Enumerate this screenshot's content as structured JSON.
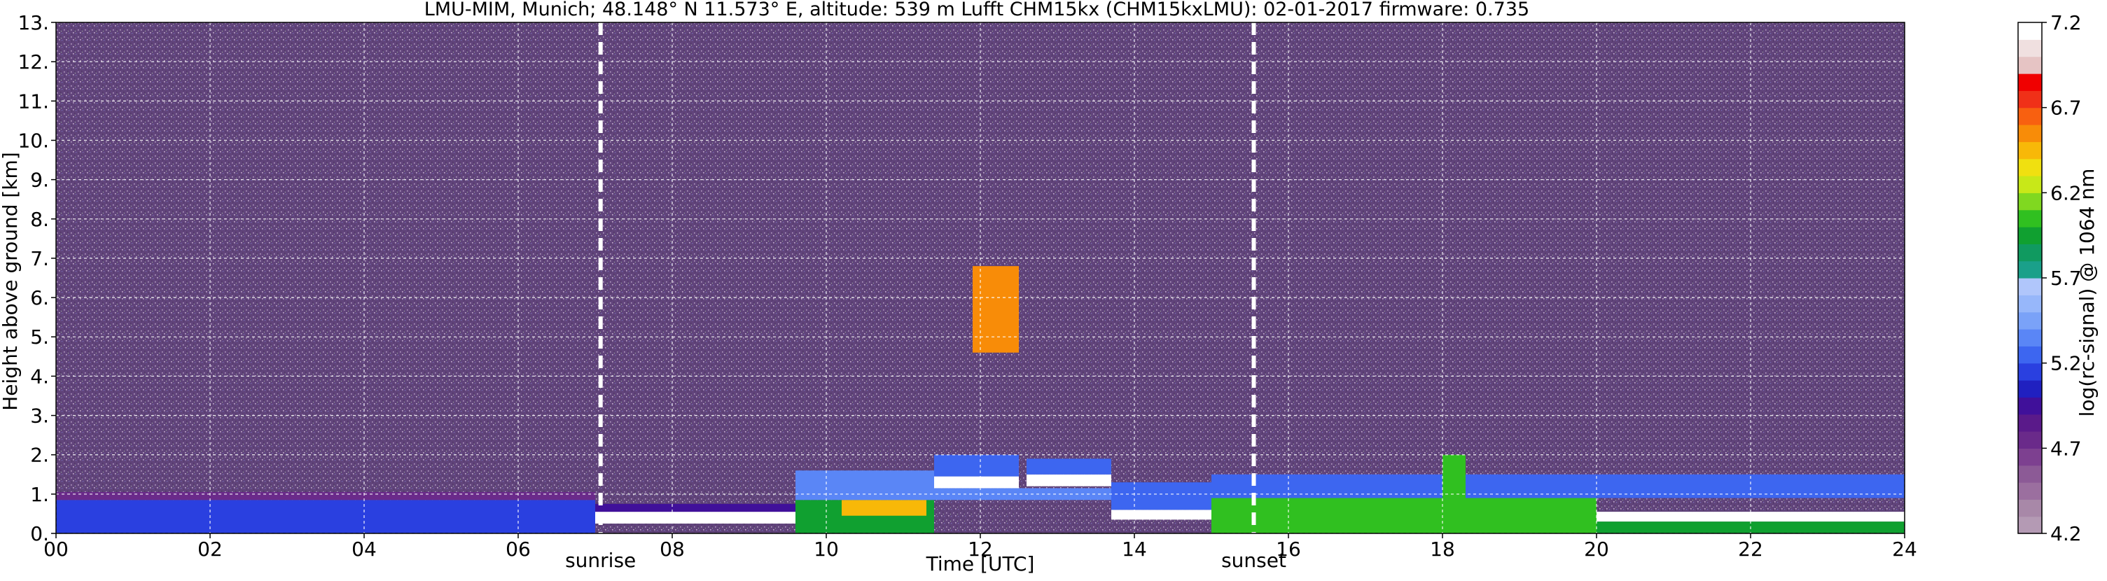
{
  "chart_data": {
    "type": "heatmap",
    "title": "LMU-MIM, Munich; 48.148° N 11.573° E, altitude: 539 m    Lufft CHM15kx (CHM15kxLMU): 02-01-2017    firmware: 0.735",
    "xlabel": "Time [UTC]",
    "ylabel": "Height above ground [km]",
    "xlim": [
      0,
      24
    ],
    "ylim": [
      0,
      13
    ],
    "xticks": [
      "00",
      "02",
      "04",
      "06",
      "08",
      "10",
      "12",
      "14",
      "16",
      "18",
      "20",
      "22",
      "24"
    ],
    "xtick_values": [
      0,
      2,
      4,
      6,
      8,
      10,
      12,
      14,
      16,
      18,
      20,
      22,
      24
    ],
    "yticks": [
      "0.",
      "1.",
      "2.",
      "3.",
      "4.",
      "5.",
      "6.",
      "7.",
      "8.",
      "9.",
      "10.",
      "11.",
      "12.",
      "13."
    ],
    "ytick_values": [
      0,
      1,
      2,
      3,
      4,
      5,
      6,
      7,
      8,
      9,
      10,
      11,
      12,
      13
    ],
    "grid": true,
    "markers": [
      {
        "label": "sunrise",
        "x": 7.07
      },
      {
        "label": "sunset",
        "x": 15.55
      }
    ],
    "colorbar": {
      "label": "log(rc-signal) @ 1064 nm",
      "range": [
        4.2,
        7.2
      ],
      "tick_labels": [
        "4.2",
        "4.7",
        "5.2",
        "5.7",
        "6.2",
        "6.7",
        "7.2"
      ],
      "tick_values": [
        4.2,
        4.7,
        5.2,
        5.7,
        6.2,
        6.7,
        7.2
      ],
      "colors": [
        "#b49ab4",
        "#a888a8",
        "#9b6f9f",
        "#8c5a96",
        "#7d4090",
        "#6a2a8a",
        "#5a1a8a",
        "#40109a",
        "#2020c0",
        "#2a40e0",
        "#3d66f0",
        "#5a86f6",
        "#7aa2f8",
        "#97b7fa",
        "#b0c6fb",
        "#1aa08a",
        "#109a60",
        "#10a030",
        "#30c020",
        "#80d820",
        "#c8e818",
        "#f0e010",
        "#f8b808",
        "#f88c08",
        "#f86010",
        "#f03018",
        "#f00000",
        "#e6c4c4",
        "#f0e0e0",
        "#ffffff"
      ]
    },
    "background_level": 4.55,
    "layers": [
      {
        "x": [
          0,
          7.0
        ],
        "y": [
          0,
          0.85
        ],
        "level": 5.15
      },
      {
        "x": [
          0,
          7.0
        ],
        "y": [
          0.85,
          1.05
        ],
        "level": 4.75
      },
      {
        "x": [
          7.0,
          9.6
        ],
        "y": [
          0.25,
          0.55
        ],
        "level": 7.2
      },
      {
        "x": [
          7.0,
          9.6
        ],
        "y": [
          0.55,
          0.75
        ],
        "level": 4.9
      },
      {
        "x": [
          9.6,
          11.4
        ],
        "y": [
          0,
          0.85
        ],
        "level": 5.9
      },
      {
        "x": [
          10.2,
          11.3
        ],
        "y": [
          0.45,
          0.85
        ],
        "level": 6.4
      },
      {
        "x": [
          9.6,
          11.4
        ],
        "y": [
          0.85,
          1.6
        ],
        "level": 5.35
      },
      {
        "x": [
          11.4,
          14.0
        ],
        "y": [
          0.85,
          1.15
        ],
        "level": 5.35
      },
      {
        "x": [
          11.4,
          12.5
        ],
        "y": [
          1.15,
          1.45
        ],
        "level": 7.2
      },
      {
        "x": [
          11.4,
          12.5
        ],
        "y": [
          1.45,
          2.0
        ],
        "level": 5.3
      },
      {
        "x": [
          12.6,
          13.7
        ],
        "y": [
          1.2,
          1.5
        ],
        "level": 7.2
      },
      {
        "x": [
          12.6,
          13.7
        ],
        "y": [
          1.5,
          1.9
        ],
        "level": 5.3
      },
      {
        "x": [
          13.7,
          15.0
        ],
        "y": [
          0.35,
          0.6
        ],
        "level": 7.2
      },
      {
        "x": [
          13.7,
          15.5
        ],
        "y": [
          0.6,
          1.3
        ],
        "level": 5.25
      },
      {
        "x": [
          15.0,
          20.0
        ],
        "y": [
          0,
          0.9
        ],
        "level": 6.0
      },
      {
        "x": [
          15.0,
          24.0
        ],
        "y": [
          0.9,
          1.5
        ],
        "level": 5.2
      },
      {
        "x": [
          18.0,
          18.3
        ],
        "y": [
          0.9,
          2.0
        ],
        "level": 6.0
      },
      {
        "x": [
          20.0,
          24.0
        ],
        "y": [
          0.3,
          0.55
        ],
        "level": 7.2
      },
      {
        "x": [
          20.0,
          24.0
        ],
        "y": [
          0,
          0.3
        ],
        "level": 5.9
      },
      {
        "x": [
          11.9,
          12.5
        ],
        "y": [
          4.6,
          6.8
        ],
        "level": 6.5
      }
    ]
  }
}
